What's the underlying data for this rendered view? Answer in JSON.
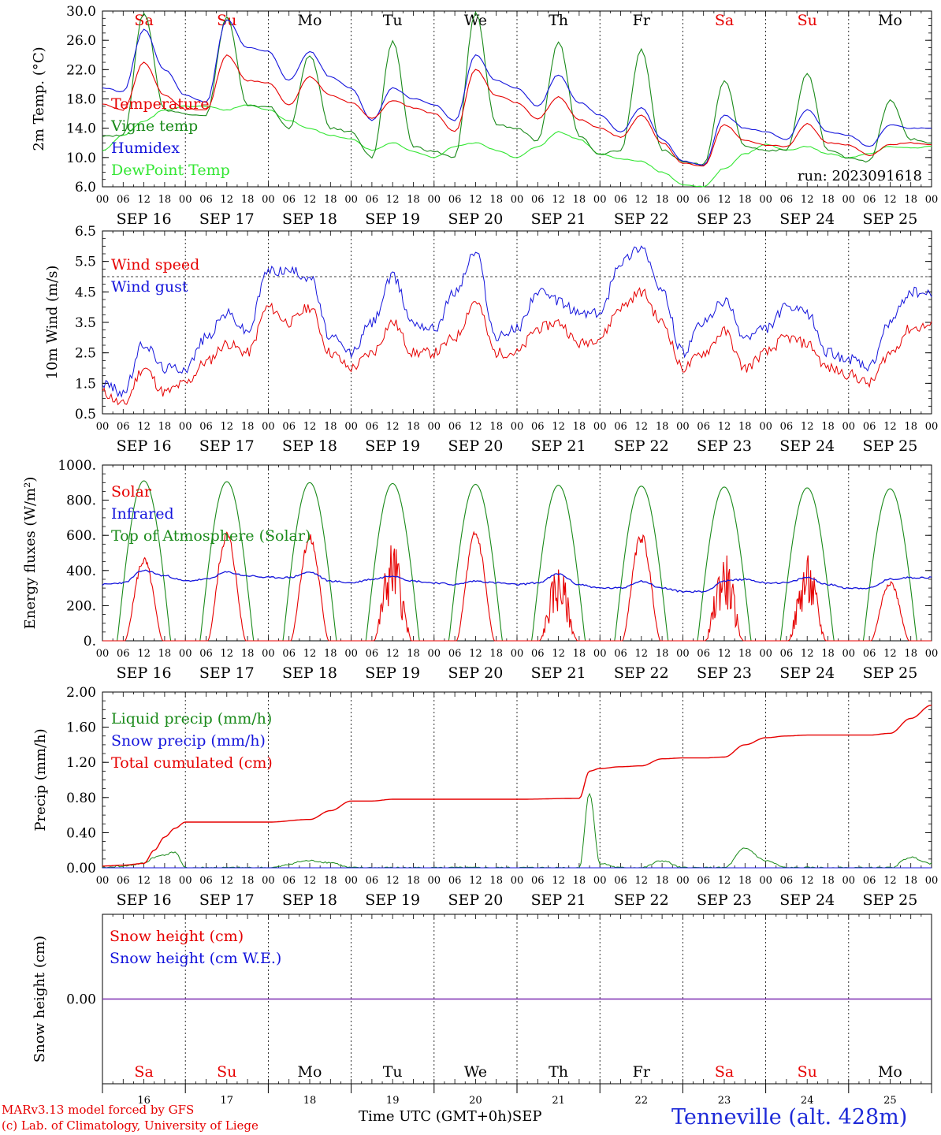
{
  "colors": {
    "red": "#e60000",
    "green": "#1a8a1a",
    "light_green": "#33e633",
    "blue": "#1414dc",
    "purple": "#7a2bb0",
    "station": "#1f2bd8",
    "weekend": "#e60000",
    "weekday": "#000000"
  },
  "days": [
    {
      "abbr": "Sa",
      "date": "SEP 16",
      "num": "16",
      "weekend": true
    },
    {
      "abbr": "Su",
      "date": "SEP 17",
      "num": "17",
      "weekend": true
    },
    {
      "abbr": "Mo",
      "date": "SEP 18",
      "num": "18",
      "weekend": false
    },
    {
      "abbr": "Tu",
      "date": "SEP 19",
      "num": "19",
      "weekend": false
    },
    {
      "abbr": "We",
      "date": "SEP 20",
      "num": "20",
      "weekend": false
    },
    {
      "abbr": "Th",
      "date": "SEP 21",
      "num": "21",
      "weekend": false
    },
    {
      "abbr": "Fr",
      "date": "SEP 22",
      "num": "22",
      "weekend": false
    },
    {
      "abbr": "Sa",
      "date": "SEP 23",
      "num": "23",
      "weekend": true
    },
    {
      "abbr": "Su",
      "date": "SEP 24",
      "num": "24",
      "weekend": true
    },
    {
      "abbr": "Mo",
      "date": "SEP 25",
      "num": "25",
      "weekend": false
    }
  ],
  "hour_ticks": [
    "00",
    "06",
    "12",
    "18"
  ],
  "hour_ticks_end": "00",
  "footer": {
    "credit_line_1": "MARv3.13 model forced by GFS",
    "credit_line_2": "(c) Lab. of Climatology, University of Liege",
    "time_axis_label": "Time UTC (GMT+0h)",
    "month_label": "SEP",
    "station": "Tenneville (alt. 428m)"
  },
  "chart_data": [
    {
      "id": "temperature",
      "type": "line",
      "ylabel": "2m Temp. (°C)",
      "ylim": [
        6.0,
        30.0
      ],
      "yticks": [
        "6.0",
        "10.0",
        "14.0",
        "18.0",
        "22.0",
        "26.0",
        "30.0"
      ],
      "run_label": "run: 2023091618",
      "x_hours": [
        0,
        6,
        12,
        18,
        24,
        30,
        36,
        42,
        48,
        54,
        60,
        66,
        72,
        78,
        84,
        90,
        96,
        102,
        108,
        114,
        120,
        126,
        132,
        138,
        144,
        150,
        156,
        162,
        168,
        174,
        180,
        186,
        192,
        198,
        204,
        210,
        216,
        222,
        228,
        234,
        240
      ],
      "series": [
        {
          "name": "Temperature",
          "color": "red",
          "values": [
            17.3,
            16.5,
            23.0,
            18.5,
            16.6,
            16.5,
            24.0,
            20.5,
            20.2,
            17.2,
            21.0,
            18.5,
            17.5,
            15.3,
            17.8,
            16.8,
            16.0,
            13.5,
            22.0,
            18.5,
            17.5,
            15.3,
            18.3,
            15.2,
            14.0,
            12.8,
            15.8,
            12.0,
            9.2,
            8.8,
            14.5,
            12.3,
            11.7,
            11.5,
            14.6,
            12.0,
            11.7,
            10.3,
            11.8,
            12.0,
            11.8
          ]
        },
        {
          "name": "Vigne temp",
          "color": "green",
          "values": [
            13.0,
            13.0,
            29.8,
            16.5,
            16.0,
            15.8,
            29.2,
            17.0,
            17.0,
            14.0,
            24.0,
            14.0,
            13.5,
            10.0,
            25.8,
            11.5,
            10.8,
            10.0,
            29.8,
            14.5,
            14.0,
            12.2,
            25.8,
            13.0,
            10.5,
            11.0,
            24.8,
            11.0,
            9.5,
            9.0,
            20.5,
            11.5,
            11.0,
            11.0,
            21.5,
            11.0,
            10.0,
            9.5,
            17.8,
            12.5,
            12.0
          ]
        },
        {
          "name": "Humidex",
          "color": "blue",
          "values": [
            19.5,
            19.0,
            27.5,
            22.0,
            18.5,
            17.5,
            28.8,
            25.0,
            24.5,
            20.5,
            24.5,
            21.0,
            19.5,
            15.0,
            19.5,
            18.0,
            17.2,
            15.0,
            24.0,
            20.5,
            19.5,
            17.0,
            21.3,
            17.5,
            15.8,
            13.5,
            16.8,
            12.5,
            9.5,
            9.0,
            15.8,
            14.0,
            13.5,
            12.5,
            16.5,
            13.5,
            13.0,
            11.5,
            14.5,
            14.0,
            14.0
          ]
        },
        {
          "name": "DewPoint Temp",
          "color": "light_green",
          "values": [
            11.0,
            13.0,
            15.0,
            16.5,
            17.0,
            17.0,
            16.5,
            17.2,
            16.5,
            15.0,
            14.0,
            13.0,
            12.5,
            11.0,
            12.0,
            10.8,
            10.0,
            11.5,
            12.0,
            11.0,
            10.0,
            11.5,
            13.5,
            12.5,
            10.5,
            9.8,
            9.5,
            8.0,
            6.3,
            6.0,
            8.5,
            10.5,
            11.8,
            11.0,
            11.5,
            10.5,
            10.0,
            10.5,
            11.5,
            11.3,
            11.5
          ]
        }
      ]
    },
    {
      "id": "wind",
      "type": "line",
      "ylabel": "10m Wind (m/s)",
      "ylim": [
        0.5,
        6.5
      ],
      "yticks": [
        "0.5",
        "1.5",
        "2.5",
        "3.5",
        "4.5",
        "5.5",
        "6.5"
      ],
      "reference_line": 5.0,
      "x_hours": [
        0,
        6,
        12,
        18,
        24,
        30,
        36,
        42,
        48,
        54,
        60,
        66,
        72,
        78,
        84,
        90,
        96,
        102,
        108,
        114,
        120,
        126,
        132,
        138,
        144,
        150,
        156,
        162,
        168,
        174,
        180,
        186,
        192,
        198,
        204,
        210,
        216,
        222,
        228,
        234,
        240
      ],
      "series": [
        {
          "name": "Wind speed",
          "color": "red",
          "values": [
            1.2,
            0.8,
            2.0,
            1.2,
            1.5,
            2.2,
            2.8,
            2.5,
            4.0,
            3.5,
            4.0,
            2.5,
            2.0,
            2.5,
            3.5,
            2.5,
            2.5,
            3.0,
            4.2,
            2.5,
            2.5,
            3.3,
            3.5,
            2.8,
            3.0,
            4.0,
            4.5,
            3.5,
            2.0,
            2.5,
            3.2,
            2.0,
            2.5,
            3.0,
            2.8,
            2.0,
            1.8,
            1.5,
            2.5,
            3.3,
            3.4
          ]
        },
        {
          "name": "Wind gust",
          "color": "blue",
          "values": [
            1.5,
            1.2,
            2.8,
            2.0,
            2.0,
            3.0,
            3.8,
            3.2,
            5.2,
            5.2,
            5.0,
            3.0,
            2.5,
            3.5,
            5.0,
            3.5,
            3.3,
            4.5,
            5.8,
            3.0,
            3.3,
            4.5,
            4.2,
            3.8,
            3.8,
            5.5,
            6.0,
            4.5,
            2.5,
            3.5,
            4.2,
            3.0,
            3.3,
            4.0,
            3.8,
            2.5,
            2.3,
            2.0,
            3.5,
            4.5,
            4.4
          ]
        }
      ]
    },
    {
      "id": "energy",
      "type": "line",
      "ylabel": "Energy fluxes (W/m²)",
      "ylim": [
        0,
        1000
      ],
      "yticks": [
        "0.",
        "200.",
        "400.",
        "600.",
        "800.",
        "1000."
      ],
      "x_hours": [
        0,
        6,
        12,
        18,
        24,
        30,
        36,
        42,
        48,
        54,
        60,
        66,
        72,
        78,
        84,
        90,
        96,
        102,
        108,
        114,
        120,
        126,
        132,
        138,
        144,
        150,
        156,
        162,
        168,
        174,
        180,
        186,
        192,
        198,
        204,
        210,
        216,
        222,
        228,
        234,
        240
      ],
      "series": [
        {
          "name": "Solar",
          "color": "red",
          "peak_values": [
            480,
            630,
            610,
            580,
            635,
            440,
            620,
            510,
            490,
            350
          ]
        },
        {
          "name": "Infrared",
          "color": "blue",
          "values": [
            320,
            330,
            400,
            370,
            340,
            350,
            390,
            370,
            360,
            360,
            390,
            340,
            330,
            350,
            370,
            340,
            330,
            320,
            340,
            330,
            320,
            330,
            380,
            320,
            300,
            300,
            340,
            300,
            280,
            280,
            340,
            350,
            330,
            330,
            360,
            320,
            300,
            300,
            350,
            360,
            360
          ]
        },
        {
          "name": "Top of Atmosphere (Solar)",
          "color": "green",
          "peak_values": [
            910,
            905,
            900,
            895,
            890,
            885,
            880,
            875,
            870,
            865
          ]
        }
      ]
    },
    {
      "id": "precip",
      "type": "line",
      "ylabel": "Precip (mm/h)",
      "ylim": [
        0,
        2.0
      ],
      "yticks": [
        "0.00",
        "0.40",
        "0.80",
        "1.20",
        "1.60",
        "2.00"
      ],
      "x_hours": [
        0,
        6,
        12,
        15,
        18,
        21,
        24,
        36,
        48,
        60,
        66,
        72,
        78,
        84,
        96,
        120,
        138,
        141,
        144,
        150,
        156,
        162,
        168,
        174,
        180,
        186,
        192,
        198,
        204,
        210,
        216,
        222,
        228,
        234,
        240
      ],
      "series": [
        {
          "name": "Liquid precip (mm/h)",
          "color": "green",
          "values": [
            0.0,
            0.02,
            0.05,
            0.12,
            0.15,
            0.18,
            0.0,
            0.0,
            0.0,
            0.08,
            0.06,
            0.0,
            0.0,
            0.0,
            0.0,
            0.0,
            0.0,
            0.85,
            0.05,
            0.0,
            0.0,
            0.08,
            0.0,
            0.0,
            0.0,
            0.22,
            0.08,
            0.0,
            0.0,
            0.0,
            0.0,
            0.0,
            0.0,
            0.12,
            0.05
          ]
        },
        {
          "name": "Snow precip (mm/h)",
          "color": "blue",
          "values": [
            0,
            0,
            0,
            0,
            0,
            0,
            0,
            0,
            0,
            0,
            0,
            0,
            0,
            0,
            0,
            0,
            0,
            0,
            0,
            0,
            0,
            0,
            0,
            0,
            0,
            0,
            0,
            0,
            0,
            0,
            0,
            0,
            0,
            0,
            0
          ]
        },
        {
          "name": "Total cumulated (cm)",
          "color": "red",
          "values": [
            0.02,
            0.03,
            0.05,
            0.2,
            0.35,
            0.45,
            0.52,
            0.52,
            0.52,
            0.55,
            0.65,
            0.76,
            0.76,
            0.78,
            0.78,
            0.78,
            0.79,
            1.1,
            1.13,
            1.15,
            1.16,
            1.24,
            1.25,
            1.25,
            1.26,
            1.4,
            1.48,
            1.5,
            1.51,
            1.51,
            1.51,
            1.51,
            1.53,
            1.7,
            1.85
          ]
        }
      ]
    },
    {
      "id": "snow",
      "type": "line",
      "ylabel": "Snow height (cm)",
      "ylim": [
        -1.0,
        1.0
      ],
      "yticks": [
        "0.00"
      ],
      "x_hours": [
        0,
        240
      ],
      "series": [
        {
          "name": "Snow height (cm)",
          "color": "red",
          "values": [
            0,
            0
          ]
        },
        {
          "name": "Snow height (cm W.E.)",
          "color": "blue",
          "values": [
            0,
            0
          ]
        }
      ]
    }
  ]
}
